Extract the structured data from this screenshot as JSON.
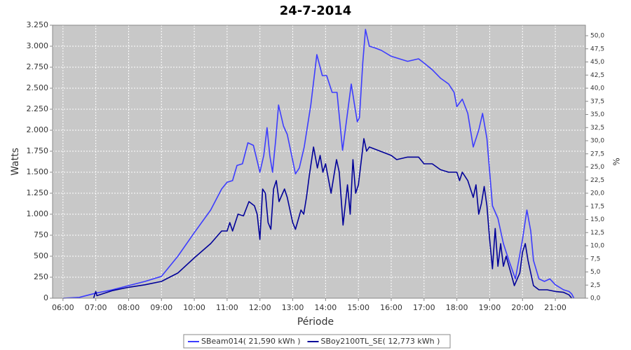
{
  "chart_data": {
    "type": "line",
    "title": "24-7-2014",
    "x_label": "Période",
    "y_label": "Watts",
    "y2_label": "%",
    "xlim": [
      "05:41",
      "21:55"
    ],
    "xticks": [
      "06:00",
      "07:00",
      "08:00",
      "09:00",
      "10:00",
      "11:00",
      "12:00",
      "13:00",
      "14:00",
      "15:00",
      "16:00",
      "17:00",
      "18:00",
      "19:00",
      "20:00",
      "21:00"
    ],
    "ylim": [
      0,
      3250
    ],
    "yticks": [
      0,
      250,
      500,
      750,
      {
        "value": 1000,
        "label": "1.000"
      },
      {
        "value": 1250,
        "label": "1.250"
      },
      {
        "value": 1500,
        "label": "1.500"
      },
      {
        "value": 1750,
        "label": "1.750"
      },
      {
        "value": 2000,
        "label": "2.000"
      },
      {
        "value": 2250,
        "label": "2.250"
      },
      {
        "value": 2500,
        "label": "2.500"
      },
      {
        "value": 2750,
        "label": "2.750"
      },
      {
        "value": 3000,
        "label": "3.000"
      },
      {
        "value": 3250,
        "label": "3.250"
      }
    ],
    "y2lim": [
      0,
      52
    ],
    "y2ticks": [
      {
        "value": 0,
        "label": "0,0"
      },
      {
        "value": 2.5,
        "label": "2,5"
      },
      {
        "value": 5,
        "label": "5,0"
      },
      {
        "value": 7.5,
        "label": "7,5"
      },
      {
        "value": 10,
        "label": "10,0"
      },
      {
        "value": 12.5,
        "label": "12,5"
      },
      {
        "value": 15,
        "label": "15,0"
      },
      {
        "value": 17.5,
        "label": "17,5"
      },
      {
        "value": 20,
        "label": "20,0"
      },
      {
        "value": 22.5,
        "label": "22,5"
      },
      {
        "value": 25,
        "label": "25,0"
      },
      {
        "value": 27.5,
        "label": "27,5"
      },
      {
        "value": 30,
        "label": "30,0"
      },
      {
        "value": 32.5,
        "label": "32,5"
      },
      {
        "value": 35,
        "label": "35,0"
      },
      {
        "value": 37.5,
        "label": "37,5"
      },
      {
        "value": 40,
        "label": "40,0"
      },
      {
        "value": 42.5,
        "label": "42,5"
      },
      {
        "value": 45,
        "label": "45,0"
      },
      {
        "value": 47.5,
        "label": "47,5"
      },
      {
        "value": 50,
        "label": "50,0"
      }
    ],
    "grid": true,
    "legend": "bottom",
    "series": [
      {
        "name": "SBeam014( 21,590 kWh )",
        "color": "#3c3cff",
        "x": [
          "06:00",
          "06:30",
          "07:00",
          "07:30",
          "08:00",
          "08:30",
          "09:00",
          "09:30",
          "10:00",
          "10:30",
          "10:50",
          "11:00",
          "11:10",
          "11:18",
          "11:28",
          "11:38",
          "11:48",
          "12:00",
          "12:07",
          "12:13",
          "12:18",
          "12:23",
          "12:29",
          "12:34",
          "12:43",
          "12:50",
          "12:58",
          "13:05",
          "13:12",
          "13:21",
          "13:33",
          "13:44",
          "13:54",
          "14:02",
          "14:12",
          "14:21",
          "14:26",
          "14:31",
          "14:38",
          "14:47",
          "14:53",
          "14:58",
          "15:02",
          "15:08",
          "15:13",
          "15:20",
          "15:30",
          "15:42",
          "16:00",
          "16:30",
          "16:50",
          "17:00",
          "17:15",
          "17:30",
          "17:45",
          "17:55",
          "18:00",
          "18:10",
          "18:20",
          "18:30",
          "18:40",
          "18:47",
          "18:55",
          "19:05",
          "19:15",
          "19:25",
          "19:35",
          "19:47",
          "20:00",
          "20:08",
          "20:15",
          "20:20",
          "20:30",
          "20:40",
          "20:50",
          "21:00",
          "21:15",
          "21:25",
          "21:30",
          "21:34"
        ],
        "values": [
          0,
          10,
          60,
          100,
          150,
          200,
          260,
          500,
          780,
          1050,
          1300,
          1380,
          1400,
          1580,
          1600,
          1850,
          1820,
          1500,
          1700,
          2030,
          1700,
          1500,
          1900,
          2300,
          2050,
          1950,
          1700,
          1480,
          1550,
          1800,
          2300,
          2900,
          2650,
          2650,
          2450,
          2450,
          2100,
          1760,
          2100,
          2550,
          2300,
          2100,
          2150,
          2800,
          3200,
          3000,
          2980,
          2950,
          2880,
          2820,
          2850,
          2800,
          2720,
          2620,
          2550,
          2450,
          2280,
          2370,
          2200,
          1800,
          2000,
          2200,
          1900,
          1100,
          950,
          650,
          450,
          230,
          700,
          1050,
          800,
          450,
          230,
          200,
          230,
          160,
          100,
          80,
          50,
          0
        ]
      },
      {
        "name": "SBoy2100TL_SE( 12,773 kWh )",
        "color": "#000099",
        "x": [
          "06:56",
          "07:00",
          "07:02",
          "07:30",
          "08:00",
          "08:30",
          "09:00",
          "09:30",
          "10:00",
          "10:30",
          "10:50",
          "11:00",
          "11:05",
          "11:10",
          "11:20",
          "11:30",
          "11:40",
          "11:50",
          "11:55",
          "12:00",
          "12:05",
          "12:10",
          "12:15",
          "12:20",
          "12:25",
          "12:30",
          "12:35",
          "12:45",
          "12:50",
          "13:00",
          "13:05",
          "13:15",
          "13:20",
          "13:25",
          "13:30",
          "13:38",
          "13:45",
          "13:50",
          "13:55",
          "14:00",
          "14:10",
          "14:20",
          "14:25",
          "14:32",
          "14:40",
          "14:45",
          "14:50",
          "14:55",
          "15:00",
          "15:10",
          "15:15",
          "15:20",
          "15:40",
          "16:00",
          "16:10",
          "16:30",
          "16:50",
          "17:00",
          "17:15",
          "17:30",
          "17:45",
          "18:00",
          "18:05",
          "18:10",
          "18:20",
          "18:30",
          "18:35",
          "18:40",
          "18:45",
          "18:50",
          "18:55",
          "19:00",
          "19:05",
          "19:10",
          "19:15",
          "19:20",
          "19:25",
          "19:30",
          "19:40",
          "19:45",
          "19:55",
          "20:00",
          "20:05",
          "20:10",
          "20:15",
          "20:20",
          "20:30",
          "20:45",
          "21:00",
          "21:15",
          "21:25",
          "21:30"
        ],
        "values": [
          0,
          80,
          30,
          90,
          130,
          160,
          200,
          300,
          480,
          650,
          800,
          800,
          900,
          800,
          1000,
          980,
          1150,
          1100,
          1000,
          700,
          1300,
          1250,
          900,
          820,
          1300,
          1400,
          1150,
          1300,
          1200,
          900,
          820,
          1050,
          1000,
          1200,
          1450,
          1800,
          1550,
          1700,
          1500,
          1600,
          1250,
          1650,
          1500,
          870,
          1350,
          1000,
          1650,
          1250,
          1350,
          1900,
          1750,
          1800,
          1750,
          1700,
          1650,
          1680,
          1680,
          1600,
          1600,
          1530,
          1500,
          1500,
          1400,
          1500,
          1400,
          1200,
          1350,
          1000,
          1130,
          1330,
          1100,
          700,
          350,
          830,
          380,
          650,
          380,
          500,
          270,
          150,
          300,
          550,
          650,
          450,
          300,
          150,
          100,
          100,
          80,
          70,
          40,
          0
        ]
      }
    ]
  }
}
